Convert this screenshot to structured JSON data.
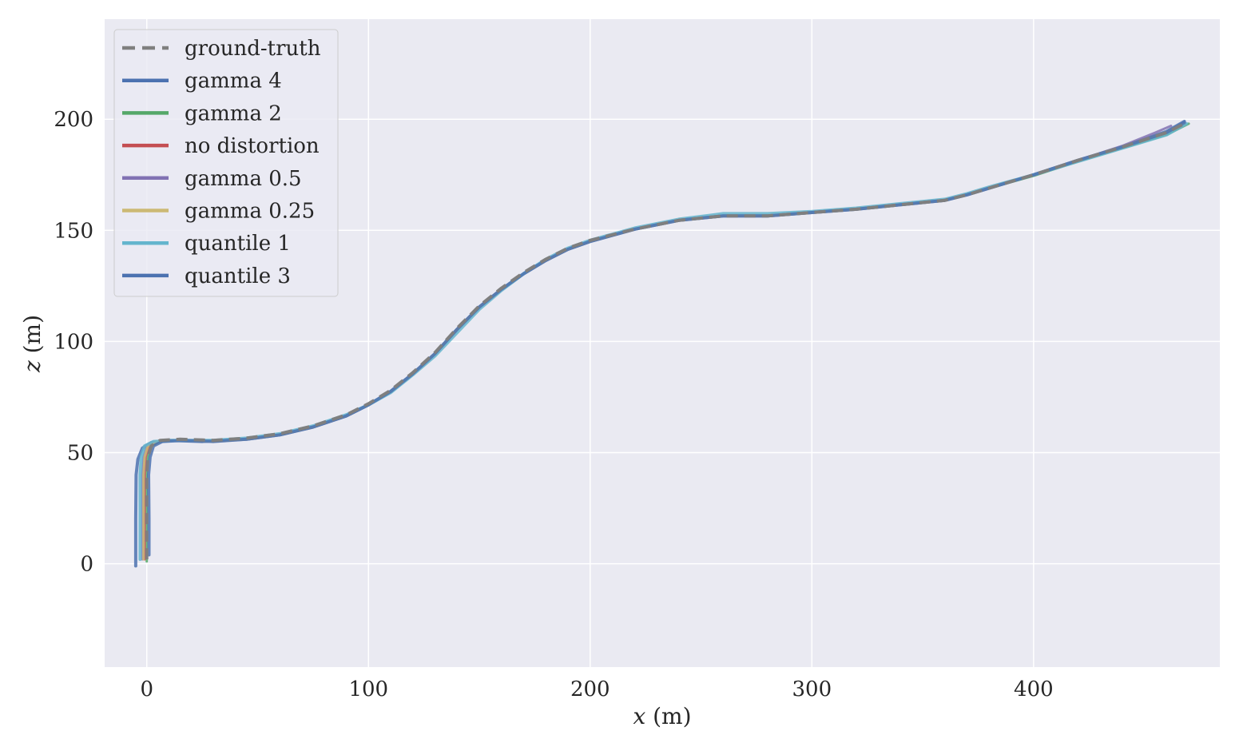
{
  "chart_data": {
    "type": "line",
    "title": "",
    "xlabel_var": "x",
    "xlabel_unit": " (m)",
    "ylabel_var": "z",
    "ylabel_unit": " (m)",
    "xlim": [
      -19,
      484
    ],
    "ylim": [
      -46.5,
      245
    ],
    "xticks": [
      0,
      100,
      200,
      300,
      400
    ],
    "yticks": [
      0,
      50,
      100,
      150,
      200
    ],
    "xtick_labels": [
      "0",
      "100",
      "200",
      "300",
      "400"
    ],
    "ytick_labels": [
      "0",
      "50",
      "100",
      "150",
      "200"
    ],
    "grid": true,
    "legend_position": "top-left",
    "background": "#eaeaf2",
    "series": [
      {
        "name": "ground-truth",
        "color": "#7f7f7f",
        "dashed": true,
        "width": 4,
        "x": [
          0,
          0,
          0,
          0.5,
          2,
          6,
          15,
          30,
          45,
          60,
          75,
          90,
          100,
          110,
          120,
          130,
          140,
          150,
          160,
          170,
          180,
          190,
          200,
          220,
          240,
          260,
          280,
          300,
          320,
          340,
          360,
          370,
          380,
          400,
          420,
          440,
          460,
          468
        ],
        "y": [
          2,
          20,
          40,
          48,
          53,
          55.5,
          56,
          55.5,
          56.5,
          58.5,
          62,
          67,
          72,
          78,
          86,
          95,
          106,
          116,
          124,
          131,
          137,
          142,
          145.5,
          150.5,
          154.5,
          156.5,
          156.5,
          158,
          159.5,
          161.5,
          163.5,
          166,
          169,
          175,
          181.5,
          187.5,
          194,
          198
        ]
      },
      {
        "name": "gamma 4",
        "color": "#4c72b0",
        "dashed": false,
        "width": 4,
        "x": [
          -5,
          -5,
          -4.8,
          -4,
          -2,
          2,
          10,
          25,
          45,
          60,
          75,
          90,
          100,
          110,
          120,
          130,
          140,
          150,
          160,
          170,
          180,
          190,
          200,
          220,
          240,
          260,
          280,
          300,
          320,
          340,
          360,
          370,
          380,
          400,
          420,
          440,
          460,
          468
        ],
        "y": [
          -1,
          20,
          40,
          47,
          52,
          54.5,
          55.5,
          55,
          56,
          58,
          61.5,
          66.5,
          71.5,
          77.5,
          85.5,
          94.5,
          105.5,
          115.5,
          123.5,
          130.5,
          136.5,
          141.5,
          145,
          150.5,
          154.5,
          156.5,
          156.5,
          158,
          159.5,
          161.5,
          163.5,
          166,
          169,
          175,
          181.5,
          187.5,
          194.5,
          199
        ]
      },
      {
        "name": "gamma 2",
        "color": "#55a868",
        "dashed": false,
        "width": 3,
        "x": [
          0,
          0,
          0,
          0.5,
          2,
          6,
          15,
          30,
          45,
          60,
          75,
          90,
          100,
          110,
          120,
          130,
          140,
          150,
          160,
          170,
          180,
          190,
          200,
          220,
          240,
          260,
          280,
          300,
          320,
          340,
          360,
          370,
          380,
          400,
          420,
          440,
          460,
          470
        ],
        "y": [
          1,
          20,
          40,
          48,
          53,
          55,
          55.5,
          55,
          56,
          58,
          61.5,
          66.5,
          71.5,
          77.5,
          85.5,
          94.5,
          105.5,
          115.5,
          123.5,
          130.5,
          136.5,
          141.5,
          145,
          150.5,
          154.5,
          156.5,
          156.5,
          158,
          159.5,
          161.5,
          163.5,
          166,
          169,
          174.5,
          181,
          187,
          193,
          198
        ]
      },
      {
        "name": "no distortion",
        "color": "#c44e52",
        "dashed": false,
        "width": 3,
        "x": [
          -1,
          -1,
          -1,
          -0.5,
          1,
          5,
          14,
          30,
          45,
          60,
          75,
          90,
          100,
          110,
          120,
          130,
          140,
          150,
          160,
          170,
          180,
          190,
          200,
          220,
          240,
          260,
          280,
          300,
          320,
          340,
          360,
          370,
          380,
          400,
          420,
          440,
          460,
          468
        ],
        "y": [
          2,
          20,
          40,
          48,
          53,
          55,
          55.5,
          55,
          56,
          58,
          61.5,
          66.5,
          71.5,
          77.5,
          85.5,
          94.5,
          105.5,
          115.5,
          123.5,
          130.5,
          136.5,
          141.5,
          145,
          150.5,
          154.5,
          156.5,
          156.5,
          158,
          159.5,
          161.5,
          163.5,
          166,
          169,
          175,
          181.5,
          187.5,
          194,
          198
        ]
      },
      {
        "name": "gamma 0.5",
        "color": "#8172b3",
        "dashed": false,
        "width": 3,
        "x": [
          -2,
          -2,
          -2,
          -1.5,
          0,
          4,
          13,
          30,
          45,
          60,
          75,
          90,
          100,
          110,
          120,
          130,
          140,
          150,
          160,
          170,
          180,
          190,
          200,
          220,
          240,
          260,
          280,
          300,
          320,
          340,
          360,
          370,
          380,
          400,
          420,
          440,
          455,
          462
        ],
        "y": [
          2,
          20,
          40,
          48,
          53,
          55,
          55.5,
          55,
          56,
          58,
          61.5,
          66.5,
          71.5,
          77.5,
          85.5,
          94.5,
          105.5,
          115.5,
          123.5,
          130.5,
          136.5,
          141.5,
          145,
          150.5,
          154.5,
          156.5,
          156.5,
          158,
          159.5,
          161.5,
          163.5,
          166,
          169,
          175,
          181.5,
          188,
          194,
          197
        ]
      },
      {
        "name": "gamma 0.25",
        "color": "#ccb974",
        "dashed": false,
        "width": 3,
        "x": [
          -1.5,
          -1.5,
          -1.5,
          -1,
          0.5,
          4.5,
          13.5,
          30,
          45,
          60,
          75,
          90,
          100,
          110,
          120,
          130,
          140,
          150,
          160,
          170,
          180,
          190,
          200,
          220,
          240,
          260,
          280,
          300,
          320,
          340,
          360,
          370,
          380,
          400,
          420,
          440,
          460,
          468
        ],
        "y": [
          2,
          20,
          40,
          48,
          53,
          55,
          55.5,
          55,
          56,
          58,
          61.5,
          66.5,
          71.5,
          77.5,
          85.5,
          94.5,
          105.5,
          115.5,
          123.5,
          130.5,
          136.5,
          141.5,
          145,
          150.5,
          154.5,
          156.5,
          156.5,
          158,
          159.5,
          161.5,
          163.5,
          166,
          169,
          175,
          181.5,
          187.5,
          194,
          198
        ]
      },
      {
        "name": "quantile 1",
        "color": "#64b5cd",
        "dashed": false,
        "width": 4,
        "x": [
          -3,
          -3,
          -3,
          -2.5,
          -1,
          3,
          12,
          30,
          45,
          60,
          75,
          90,
          100,
          110,
          120,
          130,
          140,
          150,
          160,
          170,
          180,
          190,
          200,
          220,
          240,
          260,
          280,
          300,
          320,
          340,
          360,
          370,
          380,
          400,
          420,
          440,
          460,
          469
        ],
        "y": [
          2,
          20,
          40,
          48,
          53,
          55,
          55.5,
          55.5,
          56.5,
          58.5,
          62,
          67,
          71.5,
          77,
          85,
          93.5,
          104,
          114.5,
          123,
          130.5,
          137,
          142,
          145.5,
          151,
          155,
          157.5,
          157.5,
          158.5,
          160,
          162,
          164,
          166.5,
          169.5,
          175,
          181,
          187,
          193,
          198
        ]
      },
      {
        "name": "quantile 3",
        "color": "#4c72b0",
        "dashed": false,
        "width": 4,
        "x": [
          1,
          1,
          0.8,
          1.5,
          3,
          7,
          16,
          30,
          45,
          60,
          75,
          90,
          100,
          110,
          120,
          130,
          140,
          150,
          160,
          170,
          180,
          190,
          200,
          220,
          240,
          260,
          280,
          300,
          320,
          340,
          360,
          370,
          380,
          400,
          420,
          440,
          460,
          468
        ],
        "y": [
          4,
          20,
          40,
          48,
          53,
          55,
          55.5,
          55,
          56,
          58,
          61.5,
          66.5,
          71.5,
          77.5,
          85.5,
          94.5,
          105.5,
          115.5,
          123.5,
          130.5,
          136.5,
          141.5,
          145,
          150.5,
          154.5,
          156.5,
          156.5,
          158,
          159.5,
          161.5,
          163.5,
          166,
          169,
          175,
          181.5,
          187.5,
          194,
          198.5
        ]
      }
    ]
  }
}
